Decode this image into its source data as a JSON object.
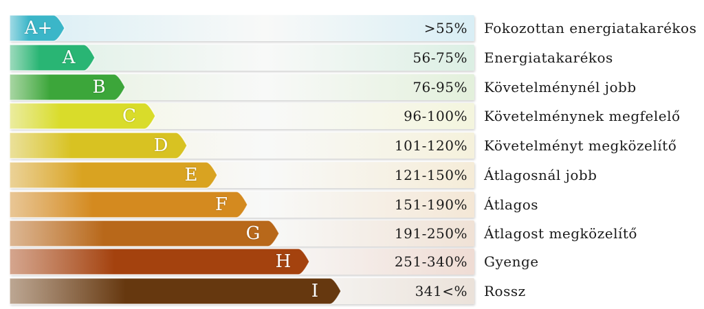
{
  "ratings": [
    {
      "grade": "A+",
      "range": ">55%",
      "label": "Fokozottan energiatakarékos",
      "color": "#3bb6c8",
      "track": "#d9eef5"
    },
    {
      "grade": "A",
      "range": "56-75%",
      "label": "Energiatakarékos",
      "color": "#29b574",
      "track": "#dcefe4"
    },
    {
      "grade": "B",
      "range": "76-95%",
      "label": "Követelménynél jobb",
      "color": "#3ca63a",
      "track": "#e3f0dc"
    },
    {
      "grade": "C",
      "range": "96-100%",
      "label": "Követelménynek megfelelő",
      "color": "#d9dc2a",
      "track": "#f4f5de"
    },
    {
      "grade": "D",
      "range": "101-120%",
      "label": "Követelményt megközelítő",
      "color": "#d8c222",
      "track": "#f5f1dc"
    },
    {
      "grade": "E",
      "range": "121-150%",
      "label": "Átlagosnál jobb",
      "color": "#d9a321",
      "track": "#f5ecd8"
    },
    {
      "grade": "F",
      "range": "151-190%",
      "label": "Átlagos",
      "color": "#d48a1f",
      "track": "#f4e7d6"
    },
    {
      "grade": "G",
      "range": "191-250%",
      "label": "Átlagost megközelítő",
      "color": "#b8681a",
      "track": "#f0e2d6"
    },
    {
      "grade": "H",
      "range": "251-340%",
      "label": "Gyenge",
      "color": "#a4420e",
      "track": "#efdcd4"
    },
    {
      "grade": "I",
      "range": "341<%",
      "label": "Rossz",
      "color": "#66380f",
      "track": "#ebe2da"
    }
  ]
}
